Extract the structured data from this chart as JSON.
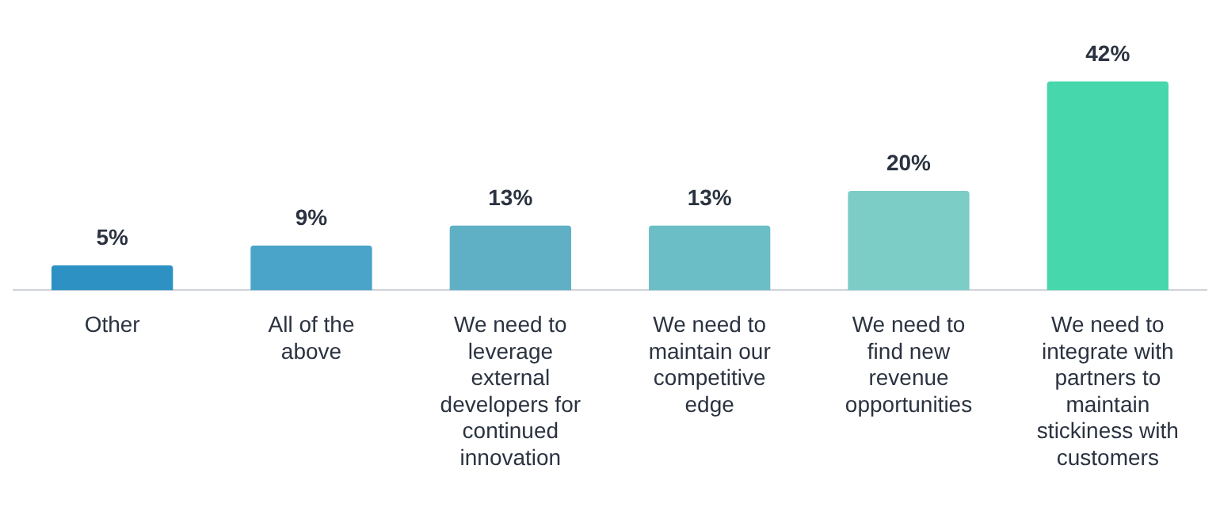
{
  "chart_data": {
    "type": "bar",
    "categories": [
      "Other",
      "All of the above",
      "We need to leverage external developers for continued innovation",
      "We need to maintain our competitive edge",
      "We need to find new revenue opportunities",
      "We need to integrate with partners to maintain stickiness with customers"
    ],
    "values": [
      5,
      9,
      13,
      13,
      20,
      42
    ],
    "colors": [
      "#2d91c4",
      "#4aa3c9",
      "#5fb0c5",
      "#6bbec6",
      "#7ccdc6",
      "#47d7ad"
    ],
    "value_labels": [
      "5%",
      "9%",
      "13%",
      "13%",
      "20%",
      "42%"
    ],
    "tick_labels": "x",
    "grid": false,
    "legend": false
  }
}
